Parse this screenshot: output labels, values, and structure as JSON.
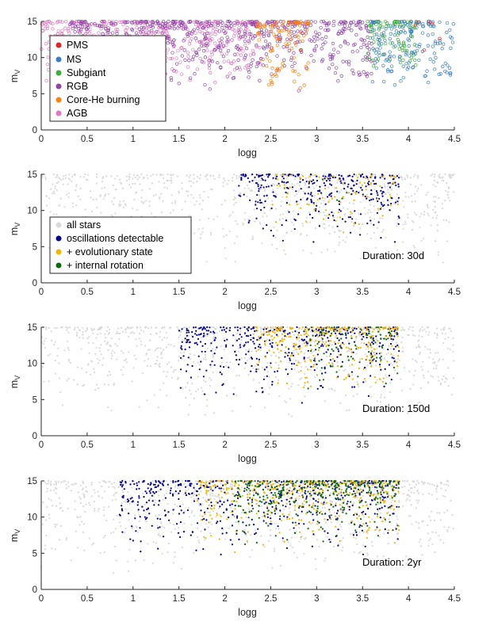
{
  "chart_data": [
    {
      "type": "scatter",
      "title": "",
      "xlabel": "logg",
      "ylabel": "m",
      "ylabel_sub": "V",
      "xlim": [
        0,
        4.5
      ],
      "ylim": [
        0,
        15
      ],
      "xticks": [
        0,
        0.5,
        1,
        1.5,
        2,
        2.5,
        3,
        3.5,
        4,
        4.5
      ],
      "xtick_labels": [
        "0",
        "0.5",
        "1",
        "1.5",
        "2",
        "2.5",
        "3",
        "3.5",
        "4",
        "4.5"
      ],
      "yticks": [
        0,
        5,
        10,
        15
      ],
      "ytick_labels": [
        "0",
        "5",
        "10",
        "15"
      ],
      "legend_position": "top-left",
      "annotation": "",
      "series": [
        {
          "name": "AGB",
          "color": "#e377c2",
          "marker": "circle-open",
          "regions": [
            {
              "logg": [
                0.0,
                2.4
              ],
              "mv_bright": [
                6.0,
                9.5
              ],
              "density": 1.0
            }
          ]
        },
        {
          "name": "RGB",
          "color": "#8e44a8",
          "marker": "circle-open",
          "regions": [
            {
              "logg": [
                0.3,
                3.6
              ],
              "mv_bright": [
                5.0,
                10.0
              ],
              "density": 1.0
            }
          ]
        },
        {
          "name": "Core-He burning",
          "color": "#ff7f0e",
          "marker": "circle-open",
          "regions": [
            {
              "logg": [
                2.35,
                2.92
              ],
              "mv_bright": [
                3.5,
                8.0
              ],
              "density": 1.0
            }
          ]
        },
        {
          "name": "Subgiant",
          "color": "#3cae3c",
          "marker": "circle-open",
          "regions": [
            {
              "logg": [
                3.55,
                4.1
              ],
              "mv_bright": [
                8.0,
                10.0
              ],
              "density": 1.0
            }
          ]
        },
        {
          "name": "MS",
          "color": "#3a7fc1",
          "marker": "circle-open",
          "regions": [
            {
              "logg": [
                3.6,
                4.5
              ],
              "mv_bright": [
                5.5,
                8.0
              ],
              "density": 1.0
            }
          ]
        },
        {
          "name": "PMS",
          "color": "#e02525",
          "marker": "circle-open",
          "regions": [
            {
              "logg": [
                4.05,
                4.5
              ],
              "mv_bright": [
                8.5,
                11.5
              ],
              "density": 0.08
            }
          ]
        }
      ]
    },
    {
      "type": "scatter",
      "title": "",
      "xlabel": "logg",
      "ylabel": "m",
      "ylabel_sub": "V",
      "xlim": [
        0,
        4.5
      ],
      "ylim": [
        0,
        15
      ],
      "xticks": [
        0,
        0.5,
        1,
        1.5,
        2,
        2.5,
        3,
        3.5,
        4,
        4.5
      ],
      "xtick_labels": [
        "0",
        "0.5",
        "1",
        "1.5",
        "2",
        "2.5",
        "3",
        "3.5",
        "4",
        "4.5"
      ],
      "yticks": [
        0,
        5,
        10,
        15
      ],
      "ytick_labels": [
        "0",
        "5",
        "10",
        "15"
      ],
      "legend_position": "middle-left",
      "annotation": "Duration: 30d",
      "series": [
        {
          "name": "all stars",
          "color": "#d9d9d9",
          "marker": "dot",
          "regions": [
            {
              "logg": [
                0.0,
                4.5
              ],
              "mv_bright": [
                2.0,
                8.0
              ],
              "density": 1.0
            }
          ]
        },
        {
          "name": "oscillations detectable",
          "color": "#00008b",
          "marker": "dot",
          "regions": [
            {
              "logg": [
                2.15,
                3.9
              ],
              "mv_bright": [
                5.0,
                12.0
              ],
              "density": 1.0
            }
          ]
        },
        {
          "name": "+ evolutionary state",
          "color": "#f5b400",
          "marker": "dot",
          "regions": [
            {
              "logg": [
                2.5,
                3.9
              ],
              "mv_bright": [
                6.0,
                11.5
              ],
              "density": 0.35
            }
          ]
        },
        {
          "name": "+ internal rotation",
          "color": "#0b6b0b",
          "marker": "dot",
          "regions": [
            {
              "logg": [
                3.0,
                3.6
              ],
              "mv_bright": [
                6.0,
                9.0
              ],
              "density": 0.02
            }
          ]
        }
      ]
    },
    {
      "type": "scatter",
      "title": "",
      "xlabel": "logg",
      "ylabel": "m",
      "ylabel_sub": "V",
      "xlim": [
        0,
        4.5
      ],
      "ylim": [
        0,
        15
      ],
      "xticks": [
        0,
        0.5,
        1,
        1.5,
        2,
        2.5,
        3,
        3.5,
        4,
        4.5
      ],
      "xtick_labels": [
        "0",
        "0.5",
        "1",
        "1.5",
        "2",
        "2.5",
        "3",
        "3.5",
        "4",
        "4.5"
      ],
      "yticks": [
        0,
        5,
        10,
        15
      ],
      "ytick_labels": [
        "0",
        "5",
        "10",
        "15"
      ],
      "legend_position": "none",
      "annotation": "Duration: 150d",
      "series": [
        {
          "name": "all stars",
          "color": "#d9d9d9",
          "marker": "dot",
          "regions": [
            {
              "logg": [
                0.0,
                4.5
              ],
              "mv_bright": [
                2.0,
                8.0
              ],
              "density": 1.0
            }
          ]
        },
        {
          "name": "oscillations detectable",
          "color": "#00008b",
          "marker": "dot",
          "regions": [
            {
              "logg": [
                1.5,
                3.9
              ],
              "mv_bright": [
                4.0,
                11.0
              ],
              "density": 1.0
            }
          ]
        },
        {
          "name": "+ evolutionary state",
          "color": "#f5b400",
          "marker": "dot",
          "regions": [
            {
              "logg": [
                2.3,
                3.9
              ],
              "mv_bright": [
                6.0,
                12.5
              ],
              "density": 1.0
            }
          ]
        },
        {
          "name": "+ internal rotation",
          "color": "#0b6b0b",
          "marker": "dot",
          "regions": [
            {
              "logg": [
                2.9,
                3.9
              ],
              "mv_bright": [
                6.0,
                11.0
              ],
              "density": 0.5
            }
          ]
        }
      ]
    },
    {
      "type": "scatter",
      "title": "",
      "xlabel": "logg",
      "ylabel": "m",
      "ylabel_sub": "V",
      "xlim": [
        0,
        4.5
      ],
      "ylim": [
        0,
        15
      ],
      "xticks": [
        0,
        0.5,
        1,
        1.5,
        2,
        2.5,
        3,
        3.5,
        4,
        4.5
      ],
      "xtick_labels": [
        "0",
        "0.5",
        "1",
        "1.5",
        "2",
        "2.5",
        "3",
        "3.5",
        "4",
        "4.5"
      ],
      "yticks": [
        0,
        5,
        10,
        15
      ],
      "ytick_labels": [
        "0",
        "5",
        "10",
        "15"
      ],
      "legend_position": "none",
      "annotation": "Duration: 2yr",
      "series": [
        {
          "name": "all stars",
          "color": "#d9d9d9",
          "marker": "dot",
          "regions": [
            {
              "logg": [
                0.0,
                4.5
              ],
              "mv_bright": [
                2.0,
                8.0
              ],
              "density": 1.0
            }
          ]
        },
        {
          "name": "oscillations detectable",
          "color": "#00008b",
          "marker": "dot",
          "regions": [
            {
              "logg": [
                0.85,
                3.9
              ],
              "mv_bright": [
                4.0,
                11.0
              ],
              "density": 1.0
            }
          ]
        },
        {
          "name": "+ evolutionary state",
          "color": "#f5b400",
          "marker": "dot",
          "regions": [
            {
              "logg": [
                1.7,
                3.9
              ],
              "mv_bright": [
                5.0,
                13.0
              ],
              "density": 1.0
            }
          ]
        },
        {
          "name": "+ internal rotation",
          "color": "#0b6b0b",
          "marker": "dot",
          "regions": [
            {
              "logg": [
                2.1,
                3.9
              ],
              "mv_bright": [
                5.0,
                13.0
              ],
              "density": 1.0
            }
          ]
        }
      ]
    }
  ]
}
